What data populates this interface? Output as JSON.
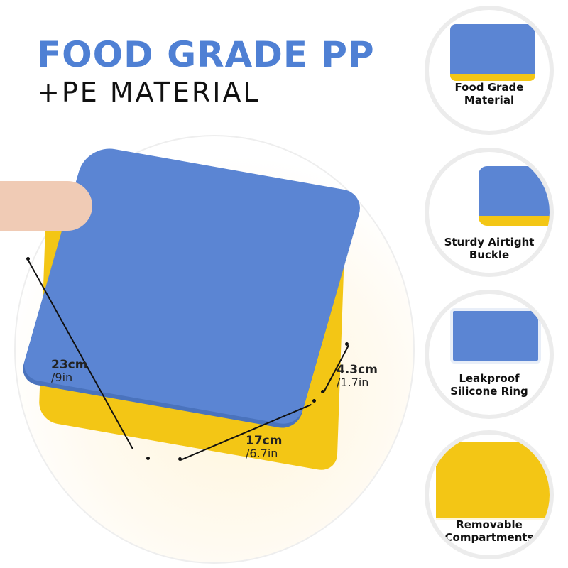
{
  "headline": {
    "line1": "FOOD GRADE PP",
    "line2": "+PE MATERIAL",
    "accent": "#4f80d4"
  },
  "dimensions": {
    "length": {
      "metric": "23cm",
      "imperial": "/9in"
    },
    "width": {
      "metric": "17cm",
      "imperial": "/6.7in"
    },
    "height": {
      "metric": "4.3cm",
      "imperial": "/1.7in"
    }
  },
  "features": [
    {
      "line1": "Food Grade",
      "line2": "Material",
      "icon": "lid-closeup"
    },
    {
      "line1": "Sturdy Airtight",
      "line2": "Buckle",
      "icon": "buckle-closeup"
    },
    {
      "line1": "Leakproof",
      "line2": "Silicone Ring",
      "icon": "silicone-ring-closeup"
    },
    {
      "line1": "Removable",
      "line2": "Compartments",
      "icon": "compartments-closeup"
    }
  ],
  "colors": {
    "lid": "#5b85d3",
    "base": "#f3c615"
  }
}
